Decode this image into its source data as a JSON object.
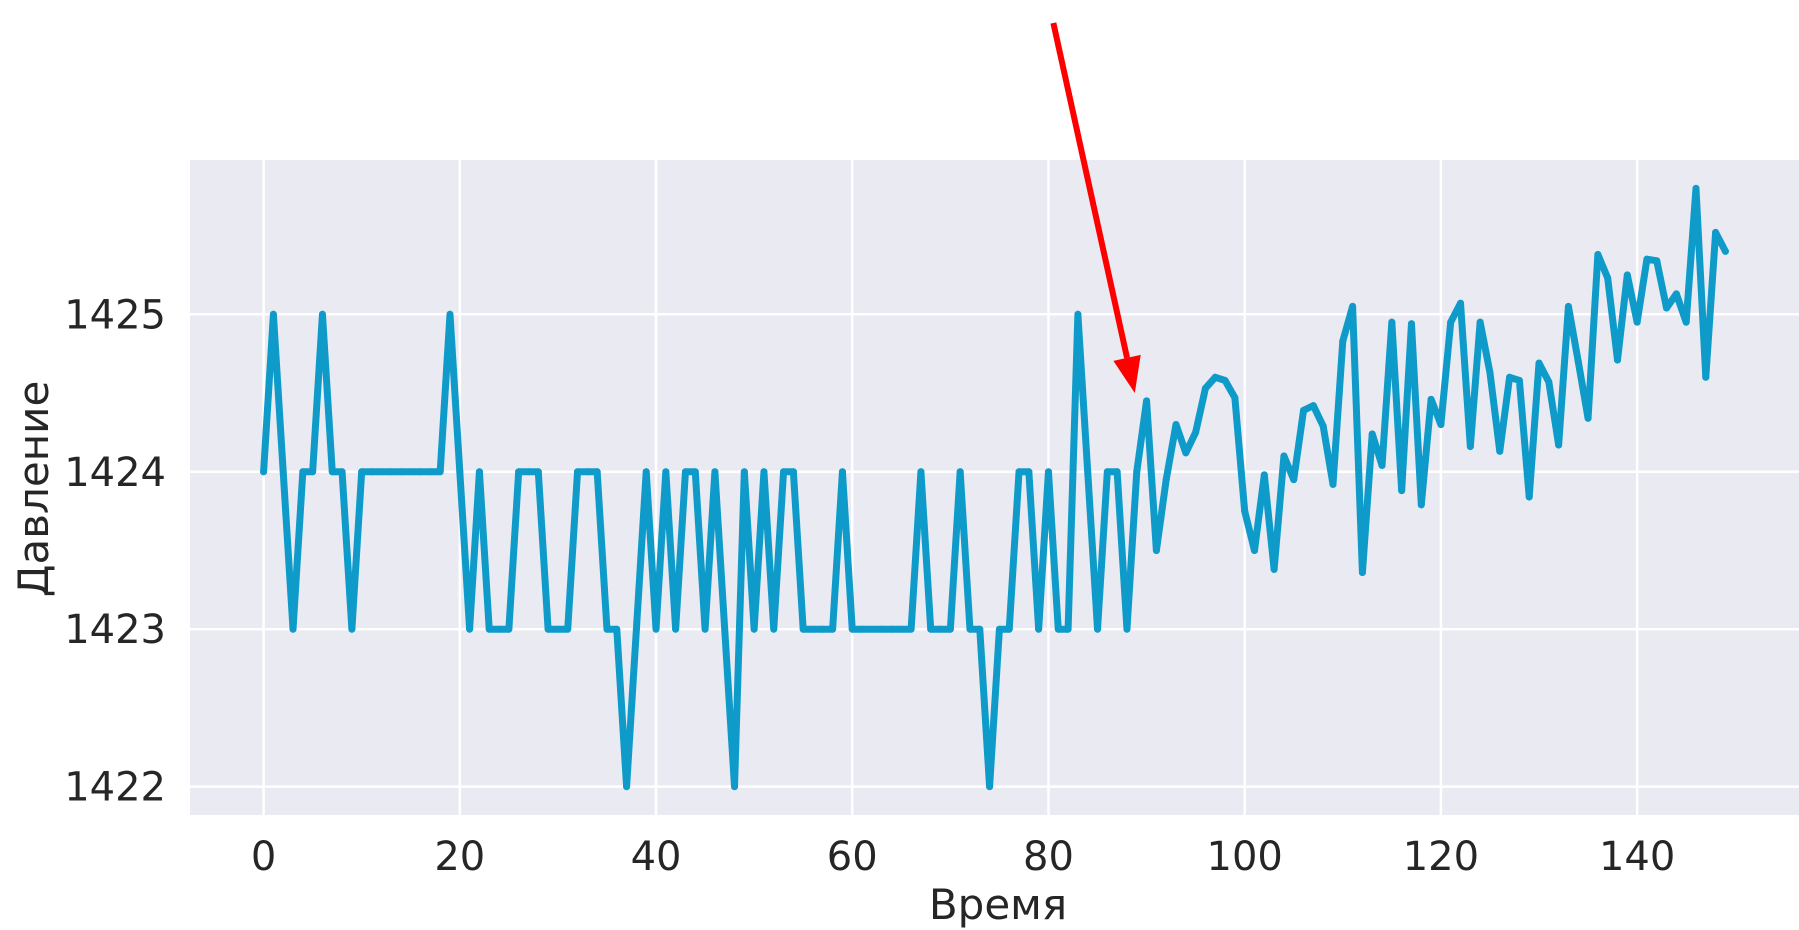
{
  "chart_data": {
    "type": "line",
    "title": "",
    "xlabel": "Время",
    "ylabel": "Давление",
    "xlim": [
      -7.5,
      156.5
    ],
    "ylim": [
      1421.82,
      1425.98
    ],
    "grid": true,
    "background_color": "#eaeaf2",
    "grid_color": "#ffffff",
    "line_color": "#0f9bc9",
    "x_ticks": [
      0,
      20,
      40,
      60,
      80,
      100,
      120,
      140
    ],
    "x_tick_labels": [
      "0",
      "20",
      "40",
      "60",
      "80",
      "100",
      "120",
      "140"
    ],
    "y_ticks": [
      1422,
      1423,
      1424,
      1425
    ],
    "y_tick_labels": [
      "1422",
      "1423",
      "1424",
      "1425"
    ],
    "series": [
      {
        "values": [
          1424,
          1425,
          1424,
          1423,
          1424,
          1424,
          1425,
          1424,
          1424,
          1423,
          1424,
          1424,
          1424,
          1424,
          1424,
          1424,
          1424,
          1424,
          1424,
          1425,
          1424,
          1423,
          1424,
          1423,
          1423,
          1423,
          1424,
          1424,
          1424,
          1423,
          1423,
          1423,
          1424,
          1424,
          1424,
          1423,
          1423,
          1422,
          1423,
          1424,
          1423,
          1424,
          1423,
          1424,
          1424,
          1423,
          1424,
          1423,
          1422,
          1424,
          1423,
          1424,
          1423,
          1424,
          1424,
          1423,
          1423,
          1423,
          1423,
          1424,
          1423,
          1423,
          1423,
          1423,
          1423,
          1423,
          1423,
          1424,
          1423,
          1423,
          1423,
          1424,
          1423,
          1423,
          1422,
          1423,
          1423,
          1424,
          1424,
          1423,
          1424,
          1423,
          1423,
          1425,
          1424,
          1423,
          1424,
          1424,
          1423,
          1424,
          1424.45,
          1423.5,
          1423.95,
          1424.3,
          1424.12,
          1424.25,
          1424.53,
          1424.6,
          1424.58,
          1424.47,
          1423.75,
          1423.5,
          1423.98,
          1423.38,
          1424.1,
          1423.95,
          1424.39,
          1424.42,
          1424.29,
          1423.92,
          1424.83,
          1425.05,
          1423.36,
          1424.24,
          1424.04,
          1424.95,
          1423.88,
          1424.94,
          1423.79,
          1424.46,
          1424.3,
          1424.95,
          1425.07,
          1424.16,
          1424.95,
          1424.63,
          1424.13,
          1424.6,
          1424.58,
          1423.84,
          1424.69,
          1424.57,
          1424.17,
          1425.05,
          1424.7,
          1424.34,
          1425.38,
          1425.23,
          1424.71,
          1425.25,
          1424.95,
          1425.35,
          1425.34,
          1425.04,
          1425.13,
          1424.95,
          1425.8,
          1424.6,
          1425.52,
          1425.4
        ]
      }
    ],
    "annotation": {
      "type": "arrow",
      "color": "#ff0000",
      "from": [
        80.5,
        1426.85
      ],
      "to": [
        88.8,
        1424.5
      ]
    }
  }
}
